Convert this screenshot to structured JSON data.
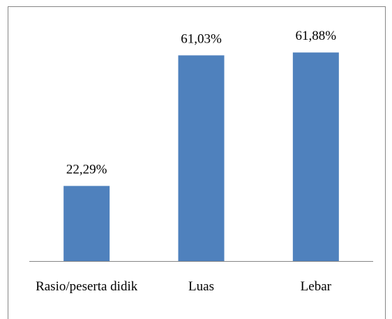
{
  "chart_data": {
    "type": "bar",
    "categories": [
      "Rasio/peserta didik",
      "Luas",
      "Lebar"
    ],
    "values": [
      22.29,
      61.03,
      61.88
    ],
    "value_labels": [
      "22,29%",
      "61,03%",
      "61,88%"
    ],
    "color": "#4f81bd",
    "ylim": [
      0,
      70
    ]
  }
}
